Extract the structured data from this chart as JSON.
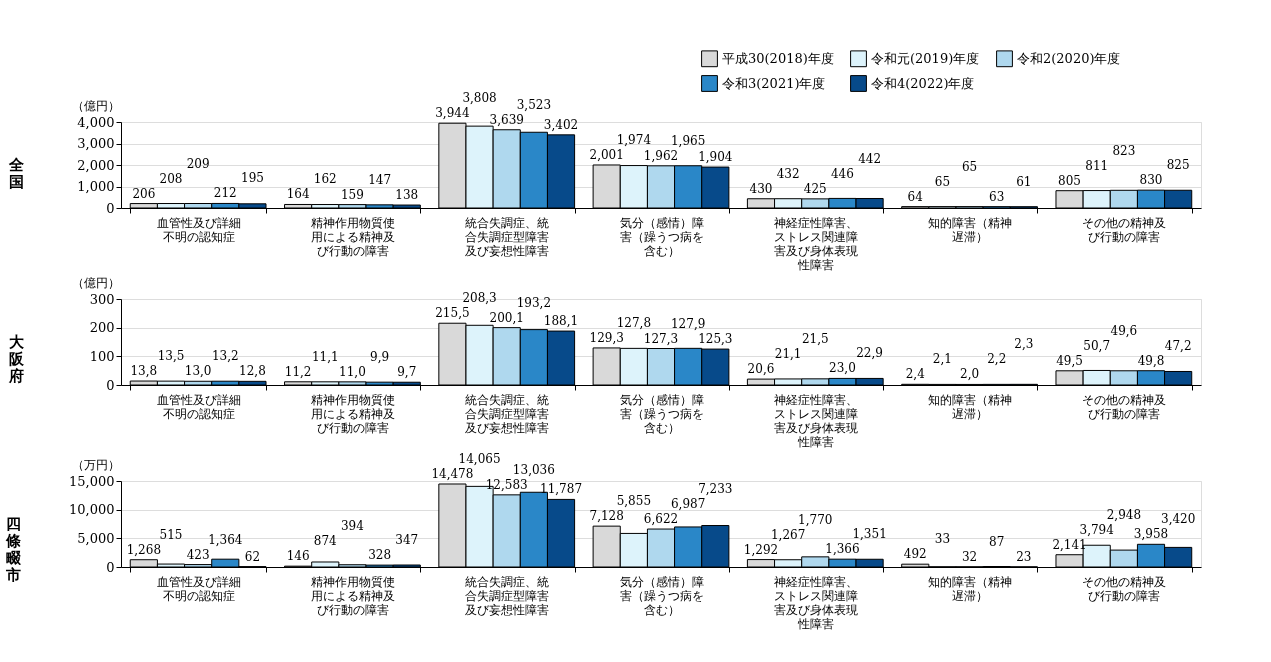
{
  "chart_data": [
    {
      "type": "bar",
      "title": "全国",
      "ylabel": "（億円）",
      "legend": "top right",
      "grid": "y",
      "categories": [
        "血管性及び詳細不明の認知症",
        "精神作用物質使用による精神及び行動の障害",
        "統合失調症、統合失調症型障害及び妄想性障害",
        "気分（感情）障害（躁うつ病を含む）",
        "神経症性障害、ストレス関連障害及び身体表現性障害",
        "知的障害（精神遅滞）",
        "その他の精神及び行動の障害"
      ],
      "ylim": [
        0,
        4000
      ],
      "yticks": [
        0,
        {
          "value": 1000,
          "label": "1,000"
        },
        {
          "value": 2000,
          "label": "2,000"
        },
        {
          "value": 3000,
          "label": "3,000"
        },
        {
          "value": 4000,
          "label": "4,000"
        }
      ],
      "series": [
        {
          "name": "平成30(2018)年度",
          "color": "#d9d9d9",
          "values": [
            206,
            164,
            3944,
            2001,
            430,
            64,
            805
          ],
          "value_labels": [
            "206",
            "164",
            "3,944",
            "2,001",
            "430",
            "64",
            "805"
          ]
        },
        {
          "name": "令和元(2019)年度",
          "color": "#ddf3fb",
          "values": [
            208,
            162,
            3808,
            1974,
            432,
            65,
            811
          ],
          "value_labels": [
            "208",
            "162",
            "3,808",
            "1,974",
            "432",
            "65",
            "811"
          ]
        },
        {
          "name": "令和2(2020)年度",
          "color": "#afd8ee",
          "values": [
            209,
            159,
            3639,
            1962,
            425,
            65,
            823
          ],
          "value_labels": [
            "209",
            "159",
            "3,639",
            "1,962",
            "425",
            "65",
            "823"
          ]
        },
        {
          "name": "令和3(2021)年度",
          "color": "#2a87c8",
          "values": [
            212,
            147,
            3523,
            1965,
            446,
            63,
            830
          ],
          "value_labels": [
            "212",
            "147",
            "3,523",
            "1,965",
            "446",
            "63",
            "830"
          ]
        },
        {
          "name": "令和4(2022)年度",
          "color": "#074a8a",
          "values": [
            195,
            138,
            3402,
            1904,
            442,
            61,
            825
          ],
          "value_labels": [
            "195",
            "138",
            "3,402",
            "1,904",
            "442",
            "61",
            "825"
          ]
        }
      ]
    },
    {
      "type": "bar",
      "title": "大阪府",
      "ylabel": "（億円）",
      "grid": "y",
      "categories": [
        "血管性及び詳細不明の認知症",
        "精神作用物質使用による精神及び行動の障害",
        "統合失調症、統合失調症型障害及び妄想性障害",
        "気分（感情）障害（躁うつ病を含む）",
        "神経症性障害、ストレス関連障害及び身体表現性障害",
        "知的障害（精神遅滞）",
        "その他の精神及び行動の障害"
      ],
      "ylim": [
        0,
        300
      ],
      "yticks": [
        0,
        100,
        200,
        300
      ],
      "series": [
        {
          "name": "平成30(2018)年度",
          "color": "#d9d9d9",
          "values": [
            13.8,
            11.2,
            215.5,
            129.3,
            20.6,
            2.4,
            49.5
          ],
          "value_labels": [
            "13,8",
            "11,2",
            "215,5",
            "129,3",
            "20,6",
            "2,4",
            "49,5"
          ]
        },
        {
          "name": "令和元(2019)年度",
          "color": "#ddf3fb",
          "values": [
            13.5,
            11.1,
            208.3,
            127.8,
            21.1,
            2.1,
            50.7
          ],
          "value_labels": [
            "13,5",
            "11,1",
            "208,3",
            "127,8",
            "21,1",
            "2,1",
            "50,7"
          ]
        },
        {
          "name": "令和2(2020)年度",
          "color": "#afd8ee",
          "values": [
            13.0,
            11.0,
            200.1,
            127.3,
            21.5,
            2.0,
            49.6
          ],
          "value_labels": [
            "13,0",
            "11,0",
            "200,1",
            "127,3",
            "21,5",
            "2,0",
            "49,6"
          ]
        },
        {
          "name": "令和3(2021)年度",
          "color": "#2a87c8",
          "values": [
            13.2,
            9.9,
            193.2,
            127.9,
            23.0,
            2.2,
            49.8
          ],
          "value_labels": [
            "13,2",
            "9,9",
            "193,2",
            "127,9",
            "23,0",
            "2,2",
            "49,8"
          ]
        },
        {
          "name": "令和4(2022)年度",
          "color": "#074a8a",
          "values": [
            12.8,
            9.7,
            188.1,
            125.3,
            22.9,
            2.3,
            47.2
          ],
          "value_labels": [
            "12,8",
            "9,7",
            "188,1",
            "125,3",
            "22,9",
            "2,3",
            "47,2"
          ]
        }
      ]
    },
    {
      "type": "bar",
      "title": "四條畷市",
      "ylabel": "（万円）",
      "grid": "y",
      "categories": [
        "血管性及び詳細不明の認知症",
        "精神作用物質使用による精神及び行動の障害",
        "統合失調症、統合失調症型障害及び妄想性障害",
        "気分（感情）障害（躁うつ病を含む）",
        "神経症性障害、ストレス関連障害及び身体表現性障害",
        "知的障害（精神遅滞）",
        "その他の精神及び行動の障害"
      ],
      "ylim": [
        0,
        15000
      ],
      "yticks": [
        0,
        {
          "value": 5000,
          "label": "5,000"
        },
        {
          "value": 10000,
          "label": "10,000"
        },
        {
          "value": 15000,
          "label": "15,000"
        }
      ],
      "series": [
        {
          "name": "平成30(2018)年度",
          "color": "#d9d9d9",
          "values": [
            1268,
            146,
            14478,
            7128,
            1292,
            492,
            2141
          ],
          "value_labels": [
            "1,268",
            "146",
            "14,478",
            "7,128",
            "1,292",
            "492",
            "2,141"
          ]
        },
        {
          "name": "令和元(2019)年度",
          "color": "#ddf3fb",
          "values": [
            515,
            874,
            14065,
            5855,
            1267,
            33,
            3794
          ],
          "value_labels": [
            "515",
            "874",
            "14,065",
            "5,855",
            "1,267",
            "33",
            "3,794"
          ]
        },
        {
          "name": "令和2(2020)年度",
          "color": "#afd8ee",
          "values": [
            423,
            394,
            12583,
            6622,
            1770,
            32,
            2948
          ],
          "value_labels": [
            "423",
            "394",
            "12,583",
            "6,622",
            "1,770",
            "32",
            "2,948"
          ]
        },
        {
          "name": "令和3(2021)年度",
          "color": "#2a87c8",
          "values": [
            1364,
            328,
            13036,
            6987,
            1366,
            87,
            3958
          ],
          "value_labels": [
            "1,364",
            "328",
            "13,036",
            "6,987",
            "1,366",
            "87",
            "3,958"
          ]
        },
        {
          "name": "令和4(2022)年度",
          "color": "#074a8a",
          "values": [
            62,
            347,
            11787,
            7233,
            1351,
            23,
            3420
          ],
          "value_labels": [
            "62",
            "347",
            "11,787",
            "7,233",
            "1,351",
            "23",
            "3,420"
          ]
        }
      ]
    }
  ]
}
